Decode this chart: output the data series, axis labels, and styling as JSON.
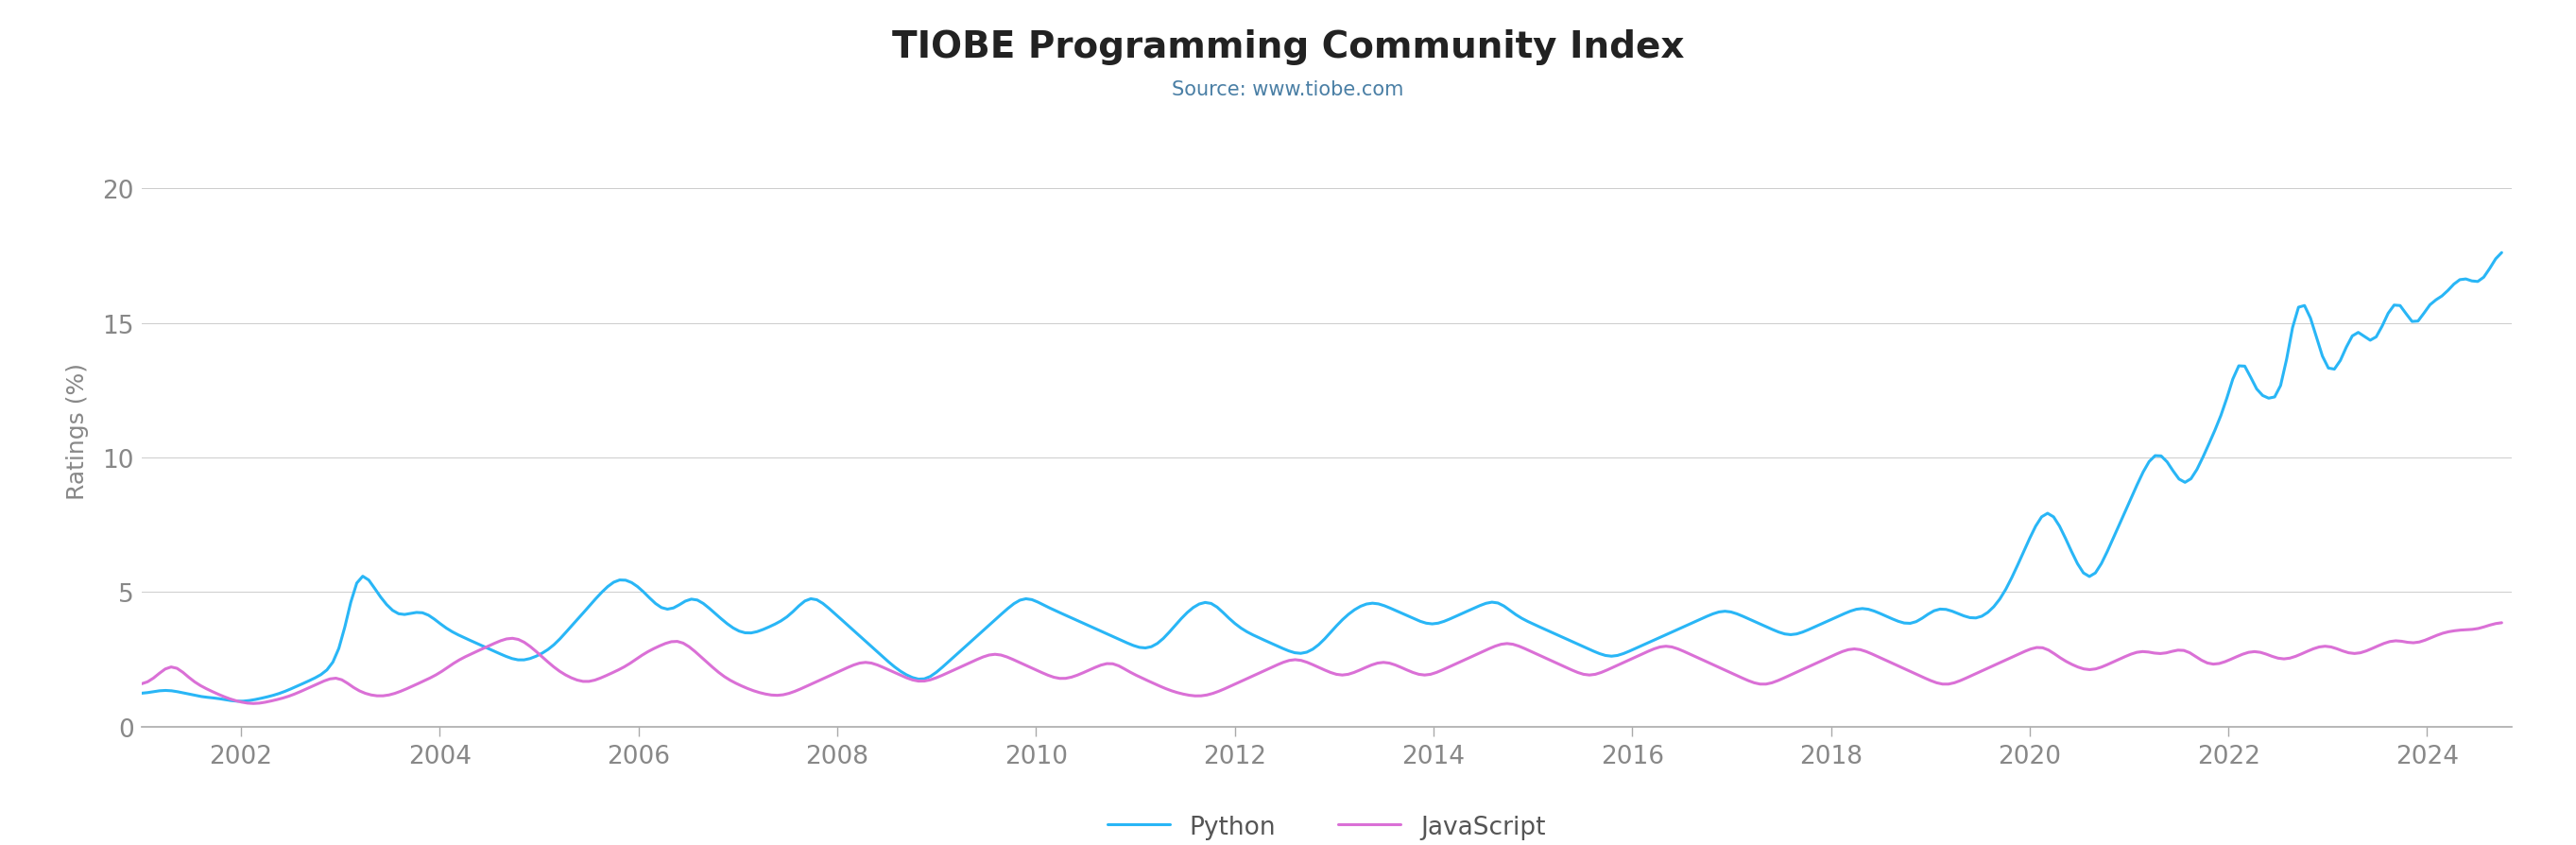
{
  "title": "TIOBE Programming Community Index",
  "subtitle": "Source: www.tiobe.com",
  "ylabel": "Ratings (%)",
  "title_color": "#222222",
  "subtitle_color": "#4a7fa5",
  "ylabel_color": "#888888",
  "tick_color": "#888888",
  "python_color": "#29b6f6",
  "js_color": "#da70d6",
  "background_color": "#ffffff",
  "grid_color": "#cccccc",
  "ylim": [
    0,
    22
  ],
  "yticks": [
    0,
    5,
    10,
    15,
    20
  ],
  "legend_labels": [
    "Python",
    "JavaScript"
  ],
  "python_data": [
    1.2,
    1.25,
    1.3,
    1.35,
    1.4,
    1.35,
    1.3,
    1.25,
    1.2,
    1.15,
    1.1,
    1.05,
    1.1,
    1.05,
    1.0,
    0.95,
    0.9,
    0.92,
    0.95,
    1.0,
    1.05,
    1.1,
    1.15,
    1.2,
    1.3,
    1.4,
    1.5,
    1.6,
    1.7,
    1.8,
    1.9,
    2.0,
    2.2,
    2.5,
    3.0,
    5.0,
    6.5,
    6.0,
    5.5,
    5.0,
    4.8,
    4.5,
    4.2,
    4.0,
    4.1,
    4.2,
    4.3,
    4.4,
    4.2,
    4.0,
    3.8,
    3.6,
    3.5,
    3.4,
    3.3,
    3.2,
    3.1,
    3.0,
    2.9,
    2.8,
    2.7,
    2.6,
    2.5,
    2.4,
    2.4,
    2.5,
    2.6,
    2.7,
    2.8,
    3.0,
    3.2,
    3.5,
    3.8,
    4.0,
    4.2,
    4.5,
    4.8,
    5.0,
    5.2,
    5.5,
    5.6,
    5.5,
    5.4,
    5.3,
    5.0,
    4.8,
    4.5,
    4.3,
    4.2,
    4.3,
    4.5,
    4.7,
    5.0,
    4.8,
    4.6,
    4.4,
    4.2,
    4.0,
    3.8,
    3.6,
    3.5,
    3.4,
    3.4,
    3.5,
    3.6,
    3.7,
    3.8,
    3.9,
    4.0,
    4.2,
    4.5,
    4.8,
    5.0,
    4.8,
    4.6,
    4.4,
    4.2,
    4.0,
    3.8,
    3.6,
    3.4,
    3.2,
    3.0,
    2.8,
    2.6,
    2.4,
    2.2,
    2.0,
    1.9,
    1.8,
    1.7,
    1.6,
    1.8,
    2.0,
    2.2,
    2.4,
    2.6,
    2.8,
    3.0,
    3.2,
    3.4,
    3.6,
    3.8,
    4.0,
    4.2,
    4.4,
    4.6,
    4.8,
    4.9,
    4.8,
    4.6,
    4.5,
    4.4,
    4.3,
    4.2,
    4.1,
    4.0,
    3.9,
    3.8,
    3.7,
    3.6,
    3.5,
    3.4,
    3.3,
    3.2,
    3.1,
    3.0,
    2.9,
    2.8,
    2.9,
    3.0,
    3.2,
    3.5,
    3.8,
    4.0,
    4.3,
    4.5,
    4.6,
    4.7,
    4.8,
    4.5,
    4.2,
    4.0,
    3.8,
    3.6,
    3.5,
    3.4,
    3.3,
    3.2,
    3.1,
    3.0,
    2.9,
    2.8,
    2.7,
    2.6,
    2.7,
    2.8,
    3.0,
    3.2,
    3.5,
    3.8,
    4.0,
    4.2,
    4.4,
    4.5,
    4.6,
    4.7,
    4.6,
    4.5,
    4.4,
    4.3,
    4.2,
    4.1,
    4.0,
    3.9,
    3.8,
    3.7,
    3.8,
    3.9,
    4.0,
    4.1,
    4.2,
    4.3,
    4.4,
    4.5,
    4.6,
    4.7,
    4.8,
    4.5,
    4.3,
    4.1,
    4.0,
    3.9,
    3.8,
    3.7,
    3.6,
    3.5,
    3.4,
    3.3,
    3.2,
    3.1,
    3.0,
    2.9,
    2.8,
    2.7,
    2.6,
    2.5,
    2.6,
    2.7,
    2.8,
    2.9,
    3.0,
    3.1,
    3.2,
    3.3,
    3.4,
    3.5,
    3.6,
    3.7,
    3.8,
    3.9,
    4.0,
    4.1,
    4.2,
    4.3,
    4.4,
    4.3,
    4.2,
    4.1,
    4.0,
    3.9,
    3.8,
    3.7,
    3.6,
    3.5,
    3.4,
    3.3,
    3.4,
    3.5,
    3.6,
    3.7,
    3.8,
    3.9,
    4.0,
    4.1,
    4.2,
    4.3,
    4.4,
    4.5,
    4.4,
    4.3,
    4.2,
    4.1,
    4.0,
    3.9,
    3.8,
    3.7,
    3.8,
    4.0,
    4.2,
    4.4,
    4.5,
    4.4,
    4.3,
    4.2,
    4.1,
    4.0,
    3.9,
    4.0,
    4.2,
    4.4,
    4.6,
    5.0,
    5.5,
    6.0,
    6.5,
    7.0,
    7.5,
    8.0,
    8.5,
    8.0,
    7.5,
    7.0,
    6.5,
    6.0,
    5.5,
    5.0,
    5.5,
    6.0,
    6.5,
    7.0,
    7.5,
    8.0,
    8.5,
    9.0,
    9.5,
    10.0,
    10.5,
    10.3,
    10.0,
    9.5,
    9.0,
    8.5,
    9.0,
    9.5,
    10.0,
    10.5,
    11.0,
    11.5,
    12.0,
    12.2,
    15.4,
    14.0,
    12.5,
    12.0,
    12.2,
    12.5,
    12.0,
    11.5,
    12.0,
    17.0,
    16.5,
    16.0,
    15.5,
    14.5,
    13.5,
    12.5,
    12.8,
    13.5,
    14.0,
    15.0,
    15.5,
    14.5,
    13.5,
    14.0,
    15.0,
    15.5,
    16.0,
    16.5,
    15.5,
    14.0,
    14.5,
    15.5,
    16.5,
    15.5,
    15.8,
    16.2,
    16.5,
    16.8,
    17.0,
    16.5,
    16.0,
    16.5,
    17.0,
    17.5,
    18.0
  ],
  "js_data": [
    1.5,
    1.6,
    1.7,
    2.0,
    2.2,
    2.5,
    2.3,
    2.0,
    1.8,
    1.6,
    1.5,
    1.4,
    1.3,
    1.2,
    1.1,
    1.0,
    0.95,
    0.9,
    0.85,
    0.8,
    0.85,
    0.9,
    0.95,
    1.0,
    1.05,
    1.1,
    1.2,
    1.3,
    1.4,
    1.5,
    1.6,
    1.7,
    1.8,
    1.9,
    2.0,
    1.5,
    1.4,
    1.3,
    1.2,
    1.15,
    1.1,
    1.1,
    1.15,
    1.2,
    1.3,
    1.4,
    1.5,
    1.6,
    1.7,
    1.8,
    1.9,
    2.0,
    2.2,
    2.4,
    2.5,
    2.6,
    2.7,
    2.8,
    2.9,
    3.0,
    3.1,
    3.2,
    3.3,
    3.4,
    3.3,
    3.2,
    3.0,
    2.8,
    2.6,
    2.4,
    2.2,
    2.0,
    1.9,
    1.8,
    1.7,
    1.6,
    1.6,
    1.7,
    1.8,
    1.9,
    2.0,
    2.1,
    2.2,
    2.3,
    2.5,
    2.7,
    2.8,
    2.9,
    3.0,
    3.1,
    3.2,
    3.3,
    3.2,
    3.0,
    2.8,
    2.6,
    2.4,
    2.2,
    2.0,
    1.8,
    1.7,
    1.6,
    1.5,
    1.4,
    1.3,
    1.25,
    1.2,
    1.15,
    1.1,
    1.15,
    1.2,
    1.3,
    1.4,
    1.5,
    1.6,
    1.7,
    1.8,
    1.9,
    2.0,
    2.1,
    2.2,
    2.3,
    2.4,
    2.5,
    2.4,
    2.3,
    2.2,
    2.1,
    2.0,
    1.9,
    1.8,
    1.7,
    1.6,
    1.65,
    1.7,
    1.8,
    1.9,
    2.0,
    2.1,
    2.2,
    2.3,
    2.4,
    2.5,
    2.6,
    2.7,
    2.8,
    2.7,
    2.6,
    2.5,
    2.4,
    2.3,
    2.2,
    2.1,
    2.0,
    1.9,
    1.8,
    1.7,
    1.75,
    1.8,
    1.9,
    2.0,
    2.1,
    2.2,
    2.3,
    2.4,
    2.5,
    2.3,
    2.1,
    2.0,
    1.9,
    1.8,
    1.7,
    1.6,
    1.5,
    1.4,
    1.3,
    1.25,
    1.2,
    1.15,
    1.1,
    1.1,
    1.15,
    1.2,
    1.3,
    1.4,
    1.5,
    1.6,
    1.7,
    1.8,
    1.9,
    2.0,
    2.1,
    2.2,
    2.3,
    2.4,
    2.5,
    2.6,
    2.5,
    2.4,
    2.3,
    2.2,
    2.1,
    2.0,
    1.9,
    1.8,
    1.9,
    2.0,
    2.1,
    2.2,
    2.3,
    2.4,
    2.5,
    2.4,
    2.3,
    2.2,
    2.1,
    2.0,
    1.9,
    1.8,
    1.9,
    2.0,
    2.1,
    2.2,
    2.3,
    2.4,
    2.5,
    2.6,
    2.7,
    2.8,
    2.9,
    3.0,
    3.1,
    3.2,
    3.1,
    3.0,
    2.9,
    2.8,
    2.7,
    2.6,
    2.5,
    2.4,
    2.3,
    2.2,
    2.1,
    2.0,
    1.9,
    1.8,
    1.9,
    2.0,
    2.1,
    2.2,
    2.3,
    2.4,
    2.5,
    2.6,
    2.7,
    2.8,
    2.9,
    3.0,
    3.1,
    3.0,
    2.9,
    2.8,
    2.7,
    2.6,
    2.5,
    2.4,
    2.3,
    2.2,
    2.1,
    2.0,
    1.9,
    1.8,
    1.7,
    1.6,
    1.5,
    1.5,
    1.6,
    1.7,
    1.8,
    1.9,
    2.0,
    2.1,
    2.2,
    2.3,
    2.4,
    2.5,
    2.6,
    2.7,
    2.8,
    2.9,
    3.0,
    2.9,
    2.8,
    2.7,
    2.6,
    2.5,
    2.4,
    2.3,
    2.2,
    2.1,
    2.0,
    1.9,
    1.8,
    1.7,
    1.6,
    1.5,
    1.5,
    1.6,
    1.7,
    1.8,
    1.9,
    2.0,
    2.1,
    2.2,
    2.3,
    2.4,
    2.5,
    2.6,
    2.7,
    2.8,
    2.9,
    3.0,
    3.1,
    2.9,
    2.7,
    2.5,
    2.4,
    2.3,
    2.2,
    2.1,
    2.0,
    2.1,
    2.2,
    2.3,
    2.4,
    2.5,
    2.6,
    2.7,
    2.8,
    2.9,
    2.8,
    2.7,
    2.6,
    2.7,
    2.8,
    2.9,
    3.0,
    2.8,
    2.6,
    2.4,
    2.3,
    2.2,
    2.3,
    2.4,
    2.5,
    2.6,
    2.7,
    2.8,
    2.9,
    2.8,
    2.7,
    2.6,
    2.5,
    2.4,
    2.5,
    2.6,
    2.7,
    2.8,
    2.9,
    3.0,
    3.1,
    3.0,
    2.9,
    2.8,
    2.7,
    2.6,
    2.7,
    2.8,
    2.9,
    3.0,
    3.1,
    3.2,
    3.3,
    3.2,
    3.1,
    3.0,
    3.1,
    3.2,
    3.3,
    3.4,
    3.5,
    3.6,
    3.5,
    3.6,
    3.7,
    3.5,
    3.6,
    3.7,
    3.8,
    3.85,
    3.9
  ],
  "line_width": 2.2,
  "xtick_years": [
    2002,
    2004,
    2006,
    2008,
    2010,
    2012,
    2014,
    2016,
    2018,
    2020,
    2022,
    2024
  ]
}
